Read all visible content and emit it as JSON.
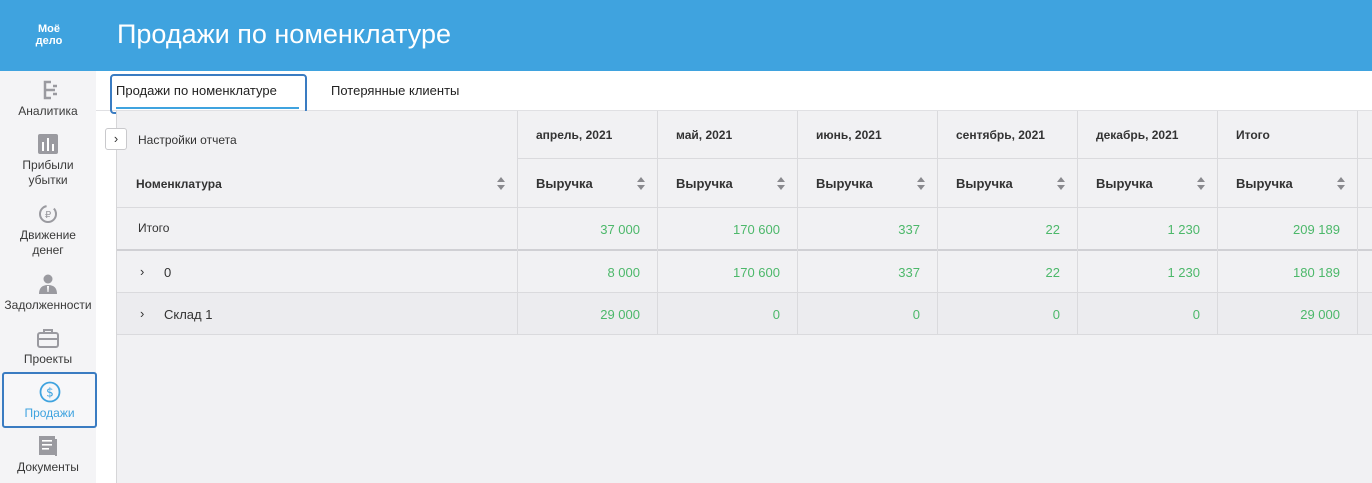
{
  "app": {
    "logo_line1": "Моё",
    "logo_line2": "дело",
    "title": "Продажи по номенклатуре"
  },
  "sidebar": {
    "items": [
      {
        "label": "Аналитика",
        "icon": "analytics-icon"
      },
      {
        "label": "Прибыли убытки",
        "icon": "bar-chart-icon"
      },
      {
        "label": "Движение денег",
        "icon": "money-flow-icon"
      },
      {
        "label": "Задолженности",
        "icon": "person-debt-icon"
      },
      {
        "label": "Проекты",
        "icon": "briefcase-icon"
      },
      {
        "label": "Продажи",
        "icon": "dollar-circle-icon",
        "active": true
      },
      {
        "label": "Документы",
        "icon": "document-icon"
      }
    ]
  },
  "tabs": [
    {
      "label": "Продажи по номенклатуре",
      "active": true
    },
    {
      "label": "Потерянные клиенты",
      "active": false
    }
  ],
  "report": {
    "settings_label": "Настройки отчета",
    "periods": [
      "апрель, 2021",
      "май, 2021",
      "июнь, 2021",
      "сентябрь, 2021",
      "декабрь, 2021",
      "Итого"
    ],
    "first_column_header": "Номенклатура",
    "metric_header": "Выручка",
    "rows": [
      {
        "label": "Итого",
        "values": [
          "37 000",
          "170 600",
          "337",
          "22",
          "1 230",
          "209 189"
        ]
      },
      {
        "label": "0",
        "expandable": true,
        "values": [
          "8 000",
          "170 600",
          "337",
          "22",
          "1 230",
          "180 189"
        ]
      },
      {
        "label": "Склад 1",
        "expandable": true,
        "values": [
          "29 000",
          "0",
          "0",
          "0",
          "0",
          "29 000"
        ]
      }
    ]
  },
  "colors": {
    "header_blue": "#3fa3df",
    "accent_outline": "#3a7cc2",
    "value_green": "#4cb86a"
  }
}
